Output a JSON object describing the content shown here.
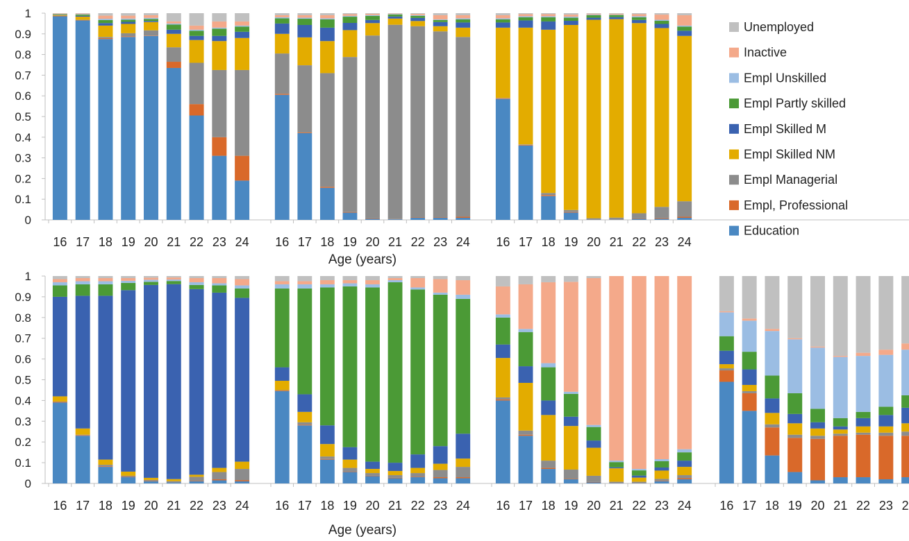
{
  "colors": {
    "Unemployed": "#c0c0c0",
    "Inactive": "#f4a98a",
    "Empl Unskilled": "#9bbde3",
    "Empl Partly skilled": "#4b9a36",
    "Empl Skilled M": "#3a62b0",
    "Empl Skilled NM": "#e3ac00",
    "Empl Managerial": "#8c8c8c",
    "Empl, Professional": "#d9692a",
    "Education": "#4a88c2"
  },
  "legend": {
    "items": [
      "Unemployed",
      "Inactive",
      "Empl Unskilled",
      "Empl Partly skilled",
      "Empl Skilled M",
      "Empl Skilled NM",
      "Empl Managerial",
      "Empl, Professional",
      "Education"
    ]
  },
  "chart_data": {
    "type": "bar",
    "stacked": true,
    "categories": [
      "16",
      "17",
      "18",
      "19",
      "20",
      "21",
      "22",
      "23",
      "24"
    ],
    "xlabel": "Age (years)",
    "ylim": [
      0,
      1
    ],
    "yticks": [
      "0",
      "0.1",
      "0.2",
      "0.3",
      "0.4",
      "0.5",
      "0.6",
      "0.7",
      "0.8",
      "0.9",
      "1"
    ],
    "stack_order": [
      "Education",
      "Empl, Professional",
      "Empl Managerial",
      "Empl Skilled NM",
      "Empl Skilled M",
      "Empl Partly skilled",
      "Empl Unskilled",
      "Inactive",
      "Unemployed"
    ],
    "panels": [
      {
        "bars": [
          [
            0.985,
            0.002,
            0.001,
            0.004,
            0.002,
            0.002,
            0.001,
            0.002,
            0.001
          ],
          [
            0.965,
            0.002,
            0.001,
            0.015,
            0.004,
            0.006,
            0.002,
            0.003,
            0.002
          ],
          [
            0.875,
            0.004,
            0.006,
            0.055,
            0.012,
            0.015,
            0.006,
            0.015,
            0.012
          ],
          [
            0.885,
            0.003,
            0.015,
            0.045,
            0.01,
            0.01,
            0.006,
            0.014,
            0.012
          ],
          [
            0.89,
            0.002,
            0.025,
            0.04,
            0.005,
            0.01,
            0.005,
            0.013,
            0.01
          ],
          [
            0.735,
            0.03,
            0.07,
            0.065,
            0.02,
            0.025,
            0.005,
            0.01,
            0.04
          ],
          [
            0.505,
            0.055,
            0.2,
            0.11,
            0.02,
            0.025,
            0.005,
            0.02,
            0.06
          ],
          [
            0.31,
            0.09,
            0.325,
            0.14,
            0.025,
            0.035,
            0.005,
            0.03,
            0.04
          ],
          [
            0.19,
            0.12,
            0.415,
            0.155,
            0.03,
            0.025,
            0.005,
            0.02,
            0.04
          ]
        ]
      },
      {
        "bars": [
          [
            0.605,
            0.005,
            0.195,
            0.095,
            0.05,
            0.025,
            0.005,
            0.01,
            0.01
          ],
          [
            0.42,
            0.003,
            0.325,
            0.135,
            0.06,
            0.03,
            0.005,
            0.012,
            0.01
          ],
          [
            0.155,
            0.005,
            0.55,
            0.155,
            0.065,
            0.04,
            0.005,
            0.015,
            0.01
          ],
          [
            0.035,
            0.003,
            0.75,
            0.13,
            0.035,
            0.03,
            0.004,
            0.008,
            0.005
          ],
          [
            0.005,
            0.002,
            0.885,
            0.06,
            0.015,
            0.02,
            0.004,
            0.006,
            0.003
          ],
          [
            0.003,
            0.001,
            0.94,
            0.03,
            0.01,
            0.01,
            0.002,
            0.002,
            0.002
          ],
          [
            0.01,
            0.002,
            0.925,
            0.025,
            0.015,
            0.01,
            0.003,
            0.006,
            0.004
          ],
          [
            0.01,
            0.002,
            0.9,
            0.025,
            0.02,
            0.01,
            0.003,
            0.02,
            0.01
          ],
          [
            0.01,
            0.005,
            0.87,
            0.045,
            0.025,
            0.015,
            0.005,
            0.015,
            0.01
          ]
        ]
      },
      {
        "bars": [
          [
            0.585,
            0.003,
            0.002,
            0.34,
            0.025,
            0.015,
            0.005,
            0.015,
            0.01
          ],
          [
            0.36,
            0.003,
            0.002,
            0.565,
            0.035,
            0.015,
            0.005,
            0.01,
            0.005
          ],
          [
            0.115,
            0.005,
            0.01,
            0.79,
            0.04,
            0.02,
            0.005,
            0.01,
            0.005
          ],
          [
            0.035,
            0.003,
            0.01,
            0.895,
            0.02,
            0.015,
            0.005,
            0.01,
            0.007
          ],
          [
            0.002,
            0.001,
            0.005,
            0.96,
            0.01,
            0.012,
            0.003,
            0.004,
            0.003
          ],
          [
            0.002,
            0.001,
            0.008,
            0.96,
            0.01,
            0.01,
            0.002,
            0.004,
            0.003
          ],
          [
            0.005,
            0.002,
            0.025,
            0.92,
            0.015,
            0.013,
            0.005,
            0.01,
            0.005
          ],
          [
            0.005,
            0.003,
            0.055,
            0.865,
            0.02,
            0.015,
            0.005,
            0.025,
            0.007
          ],
          [
            0.01,
            0.005,
            0.075,
            0.8,
            0.025,
            0.02,
            0.005,
            0.05,
            0.01
          ]
        ]
      },
      {
        "bars": [
          [
            0.39,
            0.003,
            0.002,
            0.025,
            0.48,
            0.055,
            0.015,
            0.015,
            0.015
          ],
          [
            0.23,
            0.003,
            0.002,
            0.03,
            0.64,
            0.055,
            0.015,
            0.015,
            0.01
          ],
          [
            0.08,
            0.003,
            0.007,
            0.025,
            0.79,
            0.055,
            0.015,
            0.015,
            0.01
          ],
          [
            0.03,
            0.002,
            0.005,
            0.02,
            0.875,
            0.035,
            0.01,
            0.013,
            0.01
          ],
          [
            0.01,
            0.002,
            0.005,
            0.01,
            0.93,
            0.015,
            0.01,
            0.01,
            0.008
          ],
          [
            0.005,
            0.001,
            0.005,
            0.01,
            0.94,
            0.015,
            0.007,
            0.01,
            0.007
          ],
          [
            0.01,
            0.002,
            0.02,
            0.01,
            0.895,
            0.02,
            0.013,
            0.02,
            0.01
          ],
          [
            0.015,
            0.005,
            0.035,
            0.02,
            0.845,
            0.035,
            0.01,
            0.025,
            0.01
          ],
          [
            0.01,
            0.005,
            0.055,
            0.035,
            0.79,
            0.045,
            0.015,
            0.03,
            0.015
          ]
        ]
      },
      {
        "bars": [
          [
            0.445,
            0.003,
            0.002,
            0.045,
            0.065,
            0.38,
            0.02,
            0.015,
            0.025
          ],
          [
            0.28,
            0.003,
            0.012,
            0.05,
            0.085,
            0.51,
            0.02,
            0.015,
            0.025
          ],
          [
            0.115,
            0.003,
            0.012,
            0.06,
            0.09,
            0.665,
            0.015,
            0.02,
            0.02
          ],
          [
            0.055,
            0.002,
            0.018,
            0.04,
            0.06,
            0.775,
            0.015,
            0.015,
            0.02
          ],
          [
            0.035,
            0.002,
            0.013,
            0.02,
            0.035,
            0.84,
            0.015,
            0.02,
            0.02
          ],
          [
            0.025,
            0.002,
            0.013,
            0.02,
            0.04,
            0.87,
            0.01,
            0.01,
            0.01
          ],
          [
            0.03,
            0.002,
            0.018,
            0.025,
            0.065,
            0.795,
            0.01,
            0.045,
            0.01
          ],
          [
            0.025,
            0.005,
            0.035,
            0.03,
            0.085,
            0.73,
            0.01,
            0.065,
            0.015
          ],
          [
            0.025,
            0.005,
            0.05,
            0.04,
            0.12,
            0.65,
            0.02,
            0.07,
            0.02
          ]
        ]
      },
      {
        "bars": [
          [
            0.4,
            0.005,
            0.01,
            0.19,
            0.065,
            0.13,
            0.015,
            0.135,
            0.05
          ],
          [
            0.23,
            0.005,
            0.02,
            0.23,
            0.08,
            0.165,
            0.015,
            0.215,
            0.04
          ],
          [
            0.07,
            0.005,
            0.035,
            0.22,
            0.07,
            0.16,
            0.02,
            0.39,
            0.03
          ],
          [
            0.02,
            0.002,
            0.045,
            0.21,
            0.045,
            0.11,
            0.01,
            0.53,
            0.028
          ],
          [
            0.005,
            0.002,
            0.03,
            0.135,
            0.035,
            0.065,
            0.01,
            0.708,
            0.01
          ],
          [
            0.002,
            0.001,
            0.005,
            0.065,
            0.005,
            0.025,
            0.007,
            0.89,
            0.0
          ],
          [
            0.002,
            0.001,
            0.005,
            0.02,
            0.01,
            0.025,
            0.007,
            0.93,
            0.0
          ],
          [
            0.01,
            0.002,
            0.01,
            0.04,
            0.015,
            0.03,
            0.01,
            0.883,
            0.0
          ],
          [
            0.02,
            0.005,
            0.015,
            0.04,
            0.03,
            0.04,
            0.015,
            0.835,
            0.0
          ]
        ]
      },
      {
        "bars": [
          [
            0.49,
            0.055,
            0.01,
            0.02,
            0.065,
            0.07,
            0.115,
            0.005,
            0.17
          ],
          [
            0.35,
            0.085,
            0.01,
            0.03,
            0.075,
            0.085,
            0.15,
            0.01,
            0.205
          ],
          [
            0.135,
            0.135,
            0.015,
            0.055,
            0.07,
            0.11,
            0.215,
            0.01,
            0.255
          ],
          [
            0.055,
            0.165,
            0.015,
            0.055,
            0.045,
            0.1,
            0.26,
            0.005,
            0.3
          ],
          [
            0.015,
            0.2,
            0.015,
            0.035,
            0.03,
            0.065,
            0.295,
            0.005,
            0.34
          ],
          [
            0.03,
            0.2,
            0.01,
            0.02,
            0.015,
            0.04,
            0.295,
            0.005,
            0.385
          ],
          [
            0.03,
            0.205,
            0.01,
            0.03,
            0.04,
            0.03,
            0.27,
            0.015,
            0.37
          ],
          [
            0.02,
            0.21,
            0.015,
            0.03,
            0.055,
            0.04,
            0.25,
            0.025,
            0.355
          ],
          [
            0.03,
            0.2,
            0.02,
            0.04,
            0.075,
            0.06,
            0.22,
            0.03,
            0.325
          ]
        ]
      }
    ]
  }
}
